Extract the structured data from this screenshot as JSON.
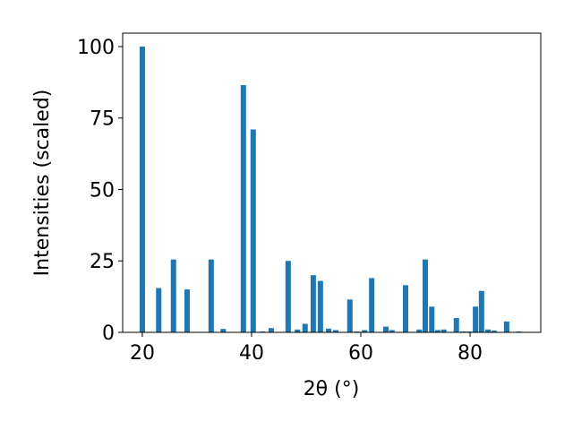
{
  "chart_data": {
    "type": "bar",
    "xlabel": "2θ (°)",
    "ylabel": "Intensities (scaled)",
    "x": [
      20.0,
      23.0,
      25.7,
      28.2,
      32.6,
      34.8,
      38.5,
      40.3,
      42.0,
      43.6,
      46.7,
      48.4,
      49.8,
      51.3,
      52.6,
      54.1,
      55.4,
      58.0,
      59.3,
      60.7,
      62.0,
      64.6,
      65.7,
      68.2,
      70.7,
      71.8,
      73.0,
      74.1,
      75.2,
      77.5,
      78.7,
      79.8,
      81.0,
      82.1,
      83.3,
      84.4,
      86.7,
      88.9
    ],
    "values": [
      100,
      15.5,
      25.5,
      15,
      25.5,
      1.2,
      86.5,
      71,
      0.3,
      1.5,
      25,
      1,
      3,
      20,
      18,
      1.3,
      0.8,
      11.5,
      0.3,
      0.8,
      19,
      2,
      0.8,
      16.5,
      1,
      25.5,
      9,
      0.8,
      1,
      5,
      0.3,
      0.3,
      9,
      14.5,
      1,
      0.6,
      3.8,
      0.3
    ],
    "color": "#1f77b4",
    "xlim": [
      16.4,
      92.95
    ],
    "ylim": [
      0,
      104.7
    ],
    "xticks": [
      20,
      40,
      60,
      80
    ],
    "yticks": [
      0,
      25,
      50,
      75,
      100
    ],
    "grid": false
  }
}
